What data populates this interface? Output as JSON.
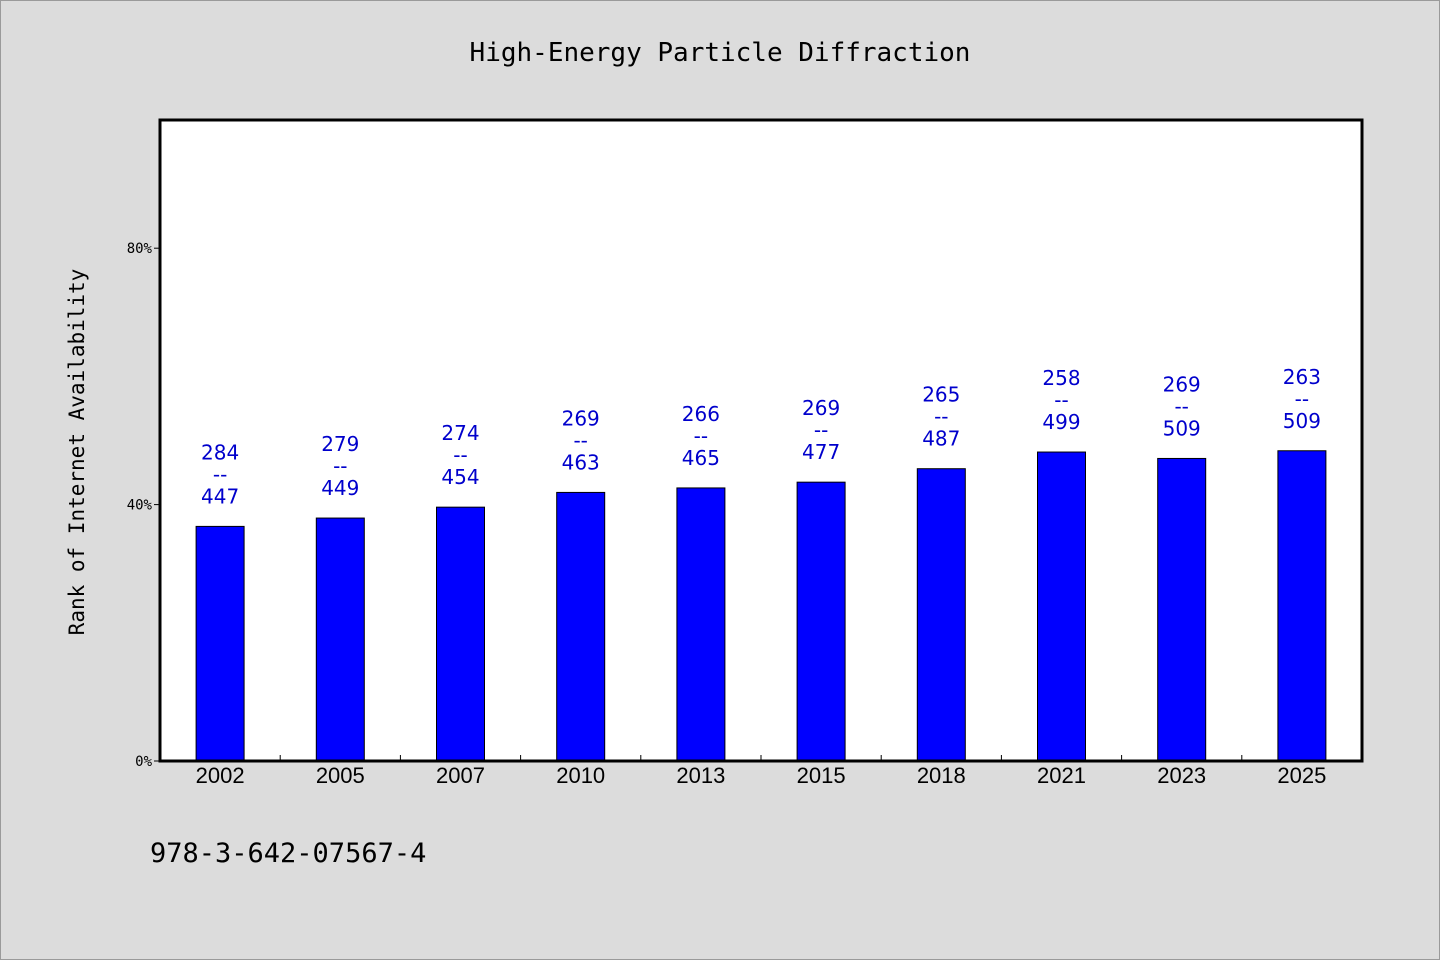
{
  "chart_data": {
    "type": "bar",
    "title": "High-Energy Particle Diffraction",
    "ylabel": "Rank of Internet Availability",
    "xlabel": "",
    "categories": [
      "2002",
      "2005",
      "2007",
      "2010",
      "2013",
      "2015",
      "2018",
      "2021",
      "2023",
      "2025"
    ],
    "values": [
      36.6,
      37.9,
      39.6,
      41.9,
      42.6,
      43.5,
      45.6,
      48.2,
      47.2,
      48.4
    ],
    "label_top": [
      "284",
      "279",
      "274",
      "269",
      "266",
      "269",
      "265",
      "258",
      "269",
      "263"
    ],
    "label_sep": "--",
    "label_bottom": [
      "447",
      "449",
      "454",
      "463",
      "465",
      "477",
      "487",
      "499",
      "509",
      "509"
    ],
    "ylim": [
      0,
      100
    ],
    "yticks": [
      0,
      40,
      80
    ],
    "ytick_labels": [
      "0%",
      "40%",
      "80%"
    ],
    "grid": false,
    "bar_color": "#0000ff",
    "label_color": "#0000cc"
  },
  "footnote": "978-3-642-07567-4",
  "colors": {
    "background": "#dcdcdc",
    "plot_background": "#ffffff"
  }
}
